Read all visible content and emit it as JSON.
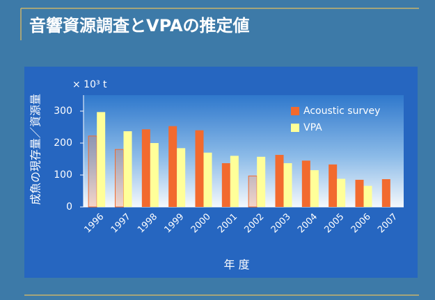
{
  "chart_data": {
    "type": "bar",
    "title": "音響資源調査とVPAの推定値",
    "y_label": "成魚の現存量／資源量",
    "unit_label": "× 10³ t",
    "x_label": "年 度",
    "categories": [
      "1996",
      "1997",
      "1998",
      "1999",
      "2000",
      "2001",
      "2002",
      "2003",
      "2004",
      "2005",
      "2006",
      "2007"
    ],
    "series": [
      {
        "name": "Acoustic survey",
        "color": "#f26a2e",
        "outline_only": [
          0,
          1,
          6
        ],
        "values": [
          222,
          180,
          243,
          253,
          240,
          137,
          97,
          163,
          145,
          133,
          85,
          87
        ]
      },
      {
        "name": "VPA",
        "color": "#ffff99",
        "values": [
          297,
          237,
          200,
          184,
          170,
          160,
          157,
          137,
          115,
          88,
          66,
          null
        ]
      }
    ],
    "ylim": [
      0,
      350
    ],
    "yticks": [
      0,
      100,
      200,
      300
    ],
    "legend": "upper right"
  }
}
